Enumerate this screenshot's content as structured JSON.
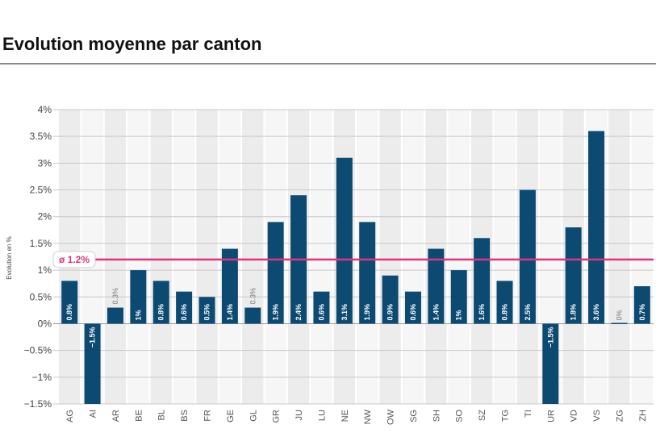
{
  "title": "Evolution moyenne par canton",
  "chart_data": {
    "type": "bar",
    "title": "Evolution moyenne par canton",
    "ylabel": "Evolution en %",
    "xlabel": "",
    "ylim": [
      -1.5,
      4
    ],
    "yticks": [
      "4%",
      "3.5%",
      "3%",
      "2.5%",
      "2%",
      "1.5%",
      "1%",
      "0.5%",
      "0%",
      "−0.5%",
      "−1%",
      "−1.5%"
    ],
    "ytick_values": [
      4,
      3.5,
      3,
      2.5,
      2,
      1.5,
      1,
      0.5,
      0,
      -0.5,
      -1,
      -1.5
    ],
    "categories": [
      "AG",
      "AI",
      "AR",
      "BE",
      "BL",
      "BS",
      "FR",
      "GE",
      "GL",
      "GR",
      "JU",
      "LU",
      "NE",
      "NW",
      "OW",
      "SG",
      "SH",
      "SO",
      "SZ",
      "TG",
      "TI",
      "UR",
      "VD",
      "VS",
      "ZG",
      "ZH"
    ],
    "values": [
      0.8,
      -1.5,
      0.3,
      1,
      0.8,
      0.6,
      0.5,
      1.4,
      0.3,
      1.9,
      2.4,
      0.6,
      3.1,
      1.9,
      0.9,
      0.6,
      1.4,
      1,
      1.6,
      0.8,
      2.5,
      -1.5,
      1.8,
      3.6,
      0,
      0.7
    ],
    "labels": [
      "0.8%",
      "−1.5%",
      "0.3%",
      "1%",
      "0.8%",
      "0.6%",
      "0.5%",
      "1.4%",
      "0.3%",
      "1.9%",
      "2.4%",
      "0.6%",
      "3.1%",
      "1.9%",
      "0.9%",
      "0.6%",
      "1.4%",
      "1%",
      "1.6%",
      "0.8%",
      "2.5%",
      "−1.5%",
      "1.8%",
      "3.6%",
      "0%",
      "0.7%"
    ],
    "average": {
      "value": 1.2,
      "label": "ø 1.2%"
    },
    "colors": {
      "bar": "#0d4a72",
      "average": "#e0347f",
      "grid": "#c8c8c8",
      "band": "#ececec"
    },
    "grid": true,
    "legend": "none"
  }
}
